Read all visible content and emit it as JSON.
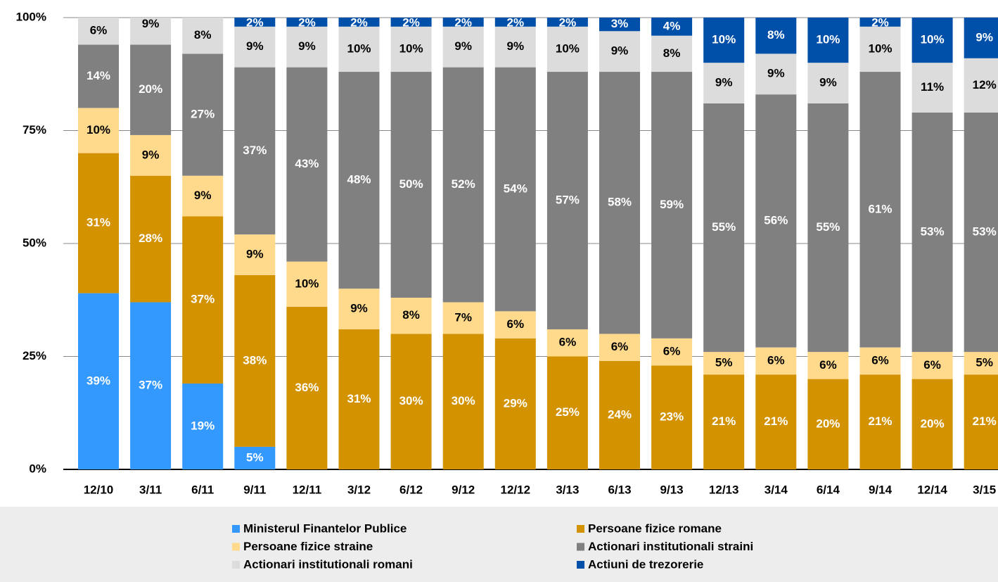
{
  "chart_data": {
    "type": "bar",
    "stacked": true,
    "categories": [
      "12/10",
      "3/11",
      "6/11",
      "9/11",
      "12/11",
      "3/12",
      "6/12",
      "9/12",
      "12/12",
      "3/13",
      "6/13",
      "9/13",
      "12/13",
      "3/14",
      "6/14",
      "9/14",
      "12/14",
      "3/15"
    ],
    "series": [
      {
        "name": "Ministerul Finantelor Publice",
        "color": "#3399ff",
        "label_color": "#ffffff",
        "values": [
          39,
          37,
          19,
          5,
          0,
          0,
          0,
          0,
          0,
          0,
          0,
          0,
          0,
          0,
          0,
          0,
          0,
          0
        ],
        "value_labels": [
          "39%",
          "37%",
          "19%",
          "5%",
          null,
          null,
          null,
          null,
          null,
          null,
          null,
          null,
          null,
          null,
          null,
          null,
          null,
          null
        ]
      },
      {
        "name": "Persoane fizice romane",
        "color": "#d39200",
        "label_color": "#ffffff",
        "values": [
          31,
          28,
          37,
          38,
          36,
          31,
          30,
          30,
          29,
          25,
          24,
          23,
          21,
          21,
          20,
          21,
          20,
          21
        ],
        "value_labels": [
          "31%",
          "28%",
          "37%",
          "38%",
          "36%",
          "31%",
          "30%",
          "30%",
          "29%",
          "25%",
          "24%",
          "23%",
          "21%",
          "21%",
          "20%",
          "21%",
          "20%",
          "21%"
        ]
      },
      {
        "name": "Persoane fizice straine",
        "color": "#ffd98c",
        "label_color": "#000000",
        "values": [
          10,
          9,
          9,
          9,
          10,
          9,
          8,
          7,
          6,
          6,
          6,
          6,
          5,
          6,
          6,
          6,
          6,
          5
        ],
        "value_labels": [
          "10%",
          "9%",
          "9%",
          "9%",
          "10%",
          "9%",
          "8%",
          "7%",
          "6%",
          "6%",
          "6%",
          "6%",
          "5%",
          "6%",
          "6%",
          "6%",
          "6%",
          "5%"
        ]
      },
      {
        "name": "Actionari institutionali straini",
        "color": "#808080",
        "label_color": "#ffffff",
        "values": [
          14,
          20,
          27,
          37,
          43,
          48,
          50,
          52,
          54,
          57,
          58,
          59,
          55,
          56,
          55,
          61,
          53,
          53
        ],
        "value_labels": [
          "14%",
          "20%",
          "27%",
          "37%",
          "43%",
          "48%",
          "50%",
          "52%",
          "54%",
          "57%",
          "58%",
          "59%",
          "55%",
          "56%",
          "55%",
          "61%",
          "53%",
          "53%"
        ]
      },
      {
        "name": "Actionari institutionali romani",
        "color": "#dcdcdc",
        "label_color": "#000000",
        "values": [
          6,
          9,
          8,
          9,
          9,
          10,
          10,
          9,
          9,
          10,
          9,
          8,
          9,
          9,
          9,
          10,
          11,
          12
        ],
        "value_labels": [
          "6%",
          "9%",
          "8%",
          "9%",
          "9%",
          "10%",
          "10%",
          "9%",
          "9%",
          "10%",
          "9%",
          "8%",
          "9%",
          "9%",
          "9%",
          "10%",
          "11%",
          "12%"
        ]
      },
      {
        "name": "Actiuni de trezorerie",
        "color": "#0050aa",
        "label_color": "#ffffff",
        "values": [
          0,
          0,
          0,
          2,
          2,
          2,
          2,
          2,
          2,
          2,
          3,
          4,
          10,
          8,
          10,
          2,
          10,
          9
        ],
        "value_labels": [
          null,
          null,
          null,
          "2%",
          "2%",
          "2%",
          "2%",
          "2%",
          "2%",
          "2%",
          "3%",
          "4%",
          "10%",
          "8%",
          "10%",
          "2%",
          "10%",
          "9%"
        ]
      }
    ],
    "ylim": [
      0,
      100
    ],
    "yticks": [
      {
        "value": 0,
        "label": "0%"
      },
      {
        "value": 25,
        "label": "25%"
      },
      {
        "value": 50,
        "label": "50%"
      },
      {
        "value": 75,
        "label": "75%"
      },
      {
        "value": 100,
        "label": "100%"
      }
    ],
    "grid": true,
    "legend": "bottom"
  }
}
